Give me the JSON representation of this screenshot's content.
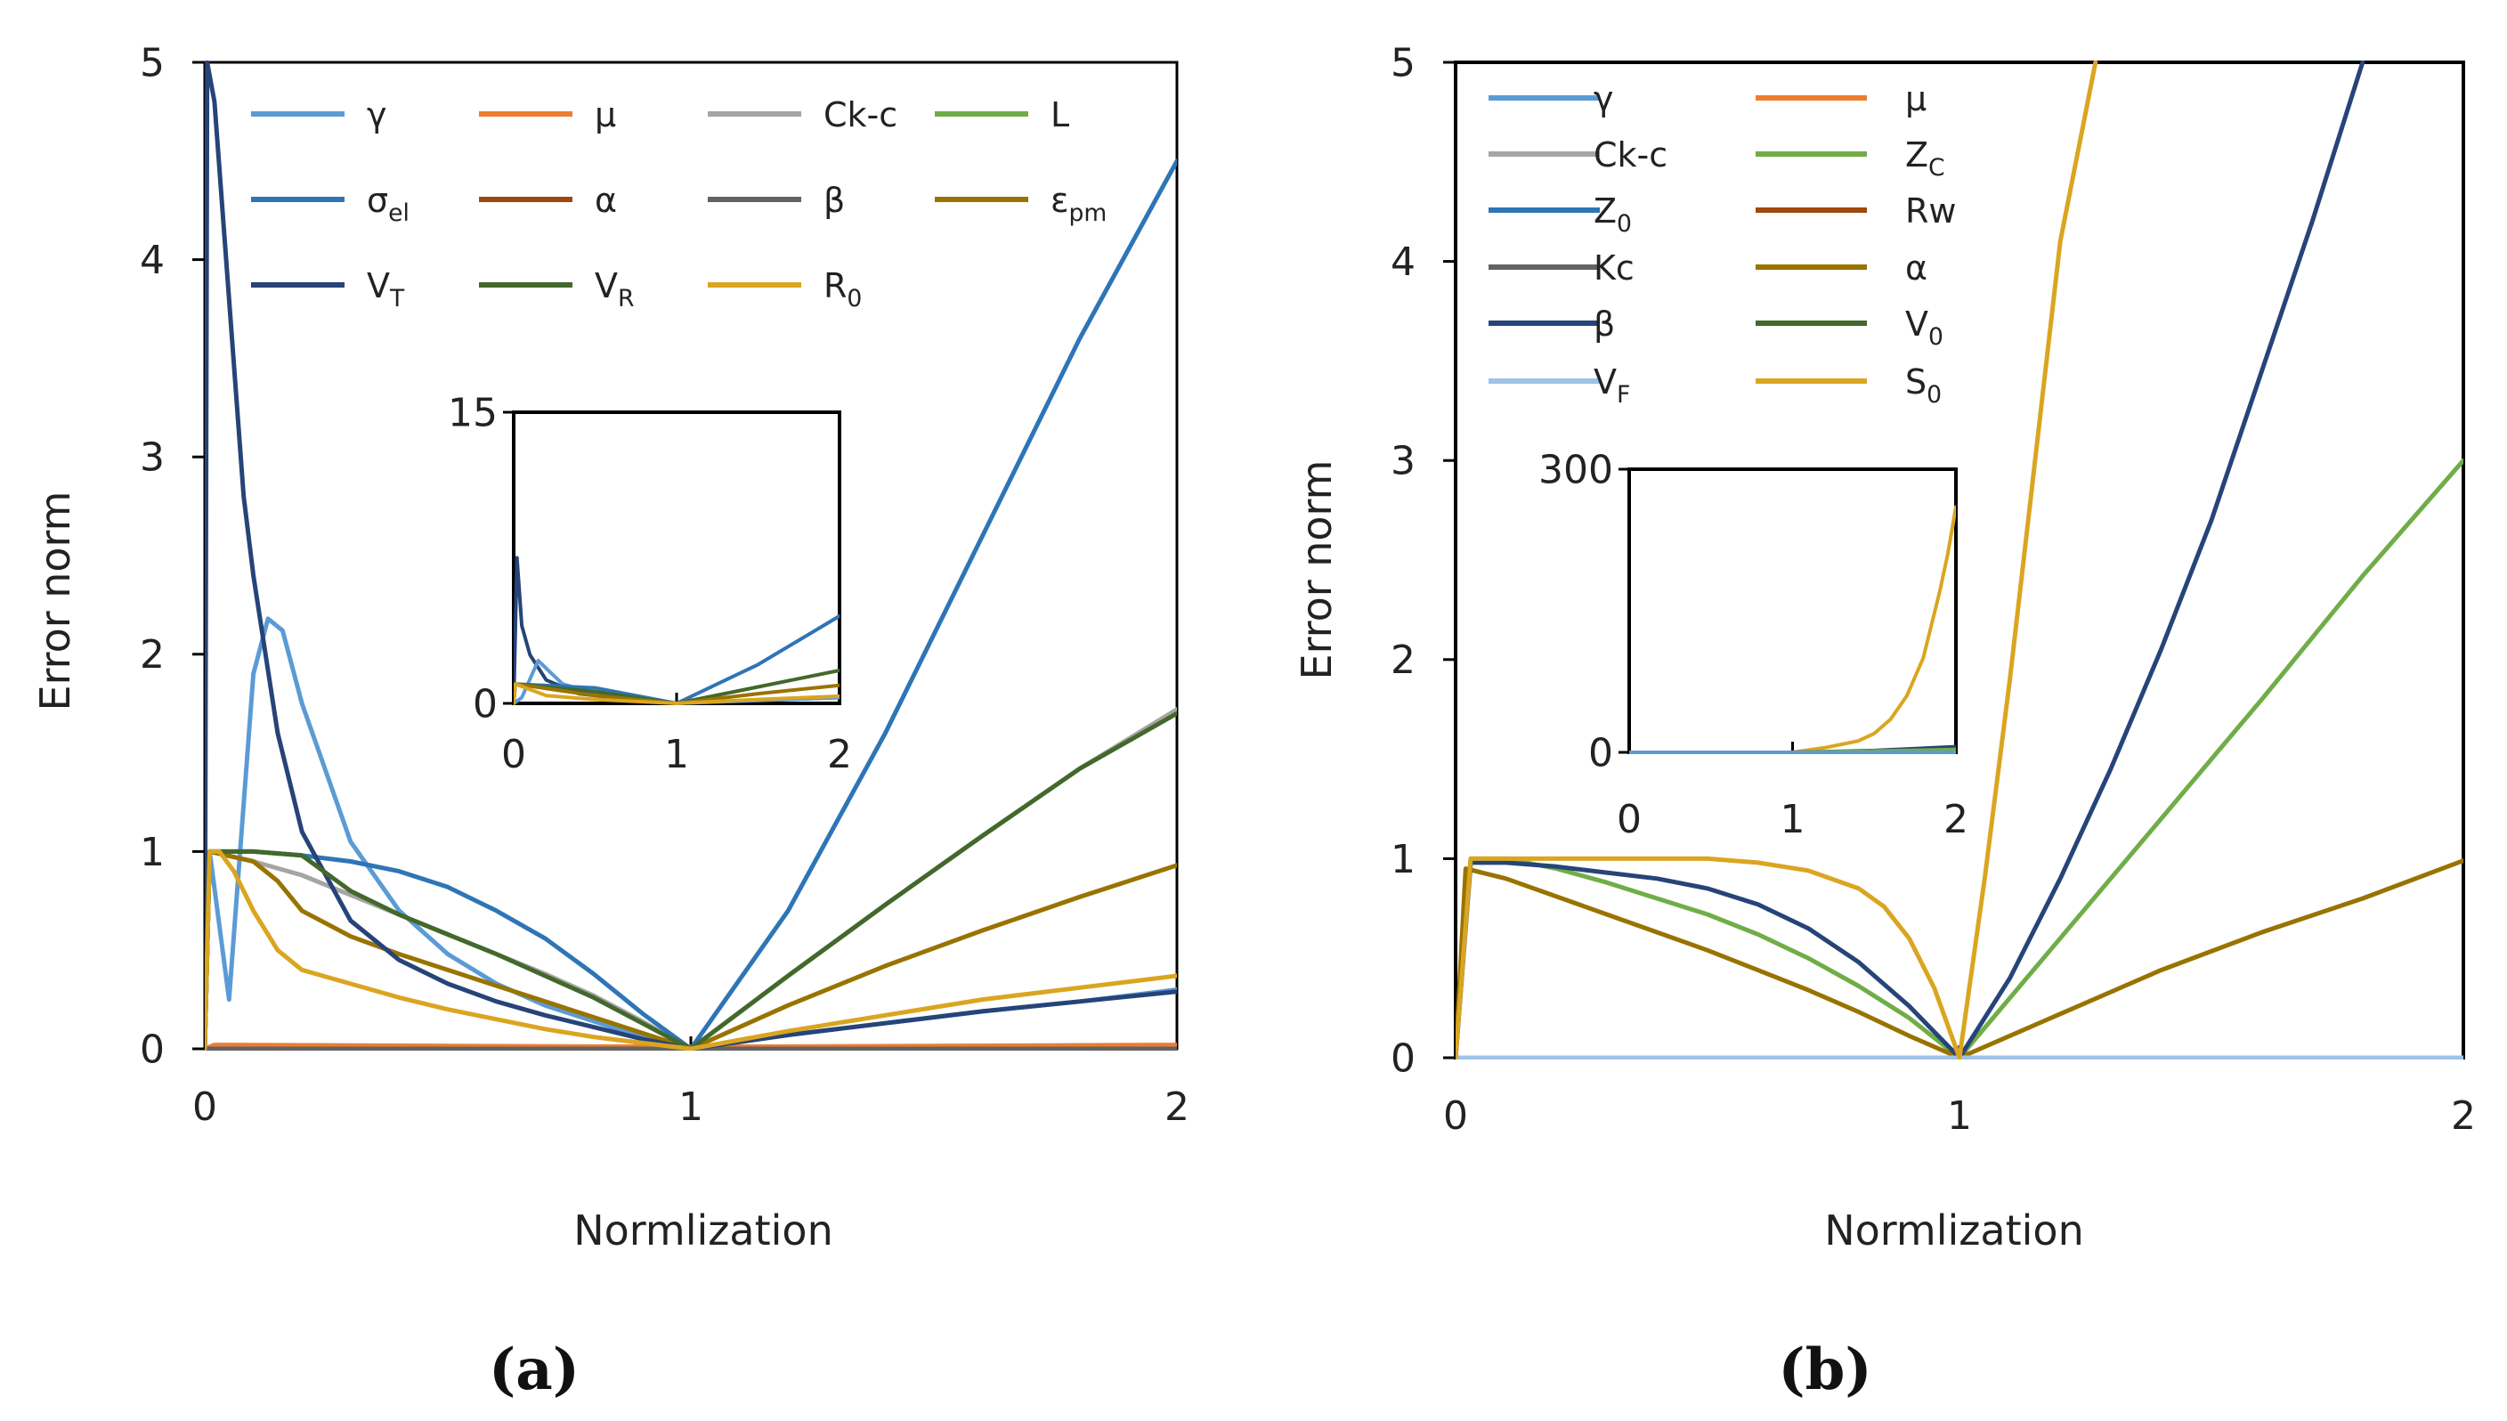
{
  "chart_data": [
    {
      "type": "line",
      "panel_label": "(a)",
      "xlabel": "Normlization",
      "ylabel": "Error norm",
      "xlim": [
        0,
        2
      ],
      "ylim": [
        0,
        5
      ],
      "xticks": [
        "0",
        "1",
        "2"
      ],
      "yticks": [
        "0",
        "1",
        "2",
        "3",
        "4",
        "5"
      ],
      "legend_position": "top",
      "series": [
        {
          "name": "γ",
          "color": "#5b9bd5",
          "x": [
            0,
            0.01,
            0.05,
            0.1,
            0.13,
            0.16,
            0.2,
            0.3,
            0.4,
            0.5,
            0.6,
            0.7,
            0.8,
            0.9,
            1.0,
            1.2,
            1.4,
            1.6,
            1.8,
            2.0
          ],
          "y": [
            0,
            1.0,
            0.25,
            1.9,
            2.18,
            2.12,
            1.75,
            1.05,
            0.7,
            0.48,
            0.33,
            0.22,
            0.14,
            0.06,
            0.0,
            0.07,
            0.13,
            0.19,
            0.24,
            0.3
          ]
        },
        {
          "name": "μ",
          "color": "#ed7d31",
          "x": [
            0,
            0.02,
            1.0,
            2.0
          ],
          "y": [
            0,
            0.02,
            0.01,
            0.02
          ]
        },
        {
          "name": "Ck-c",
          "color": "#a5a5a5",
          "x": [
            0,
            0.01,
            0.1,
            0.2,
            0.3,
            0.4,
            0.5,
            0.6,
            0.7,
            0.8,
            0.9,
            1.0,
            1.2,
            1.4,
            1.6,
            1.8,
            2.0
          ],
          "y": [
            0,
            1.0,
            0.95,
            0.88,
            0.78,
            0.68,
            0.58,
            0.48,
            0.38,
            0.27,
            0.14,
            0.0,
            0.37,
            0.73,
            1.08,
            1.42,
            1.72
          ]
        },
        {
          "name": "L",
          "color": "#70ad47",
          "x": [
            0,
            2.0
          ],
          "y": [
            0,
            0
          ]
        },
        {
          "name": "σ_el",
          "color": "#2e75b6",
          "x": [
            0,
            0.01,
            0.1,
            0.2,
            0.3,
            0.4,
            0.5,
            0.6,
            0.7,
            0.8,
            0.9,
            1.0,
            1.2,
            1.4,
            1.6,
            1.8,
            1.9,
            2.0
          ],
          "y": [
            0,
            1.0,
            1.0,
            0.98,
            0.95,
            0.9,
            0.82,
            0.7,
            0.56,
            0.38,
            0.18,
            0.0,
            0.7,
            1.6,
            2.6,
            3.6,
            4.05,
            4.5
          ]
        },
        {
          "name": "α",
          "color": "#9e480e",
          "x": [
            0,
            2.0
          ],
          "y": [
            0,
            0
          ]
        },
        {
          "name": "β",
          "color": "#636363",
          "x": [
            0,
            2.0
          ],
          "y": [
            0,
            0
          ]
        },
        {
          "name": "ε_pm",
          "color": "#997300",
          "x": [
            0,
            0.01,
            0.1,
            0.15,
            0.2,
            0.3,
            0.4,
            0.5,
            0.6,
            0.7,
            0.8,
            0.9,
            1.0,
            1.2,
            1.4,
            1.6,
            1.8,
            2.0
          ],
          "y": [
            0,
            1.0,
            0.95,
            0.85,
            0.7,
            0.57,
            0.48,
            0.4,
            0.32,
            0.24,
            0.16,
            0.08,
            0.0,
            0.22,
            0.42,
            0.6,
            0.77,
            0.93
          ]
        },
        {
          "name": "V_T",
          "color": "#264478",
          "x": [
            0,
            0.005,
            0.02,
            0.05,
            0.08,
            0.1,
            0.15,
            0.2,
            0.3,
            0.4,
            0.5,
            0.6,
            0.7,
            0.8,
            0.9,
            1.0,
            1.2,
            1.4,
            1.6,
            1.8,
            2.0
          ],
          "y": [
            0,
            5.0,
            4.8,
            3.8,
            2.8,
            2.4,
            1.6,
            1.1,
            0.65,
            0.45,
            0.33,
            0.24,
            0.17,
            0.11,
            0.05,
            0.0,
            0.07,
            0.13,
            0.19,
            0.24,
            0.29
          ]
        },
        {
          "name": "V_R",
          "color": "#43682b",
          "x": [
            0,
            0.01,
            0.1,
            0.2,
            0.3,
            0.4,
            0.5,
            0.6,
            0.7,
            0.8,
            0.9,
            1.0,
            1.2,
            1.4,
            1.6,
            1.8,
            2.0
          ],
          "y": [
            0,
            1.0,
            1.0,
            0.98,
            0.8,
            0.68,
            0.58,
            0.48,
            0.37,
            0.26,
            0.13,
            0.0,
            0.37,
            0.73,
            1.08,
            1.42,
            1.7
          ]
        },
        {
          "name": "R_0",
          "color": "#daa520",
          "x": [
            0,
            0.01,
            0.03,
            0.06,
            0.1,
            0.15,
            0.2,
            0.3,
            0.4,
            0.5,
            0.6,
            0.7,
            0.8,
            0.9,
            1.0,
            1.2,
            1.4,
            1.6,
            1.8,
            2.0
          ],
          "y": [
            0,
            1.0,
            1.0,
            0.9,
            0.7,
            0.5,
            0.4,
            0.33,
            0.26,
            0.2,
            0.15,
            0.1,
            0.06,
            0.03,
            0.0,
            0.09,
            0.17,
            0.25,
            0.31,
            0.37
          ]
        }
      ],
      "inset": {
        "xlim": [
          0,
          2
        ],
        "ylim": [
          0,
          15
        ],
        "xticks": [
          "0",
          "1",
          "2"
        ],
        "yticks": [
          "0",
          "15"
        ],
        "series": [
          {
            "name": "V_T",
            "color": "#264478",
            "x": [
              0,
              0.02,
              0.05,
              0.1,
              0.2,
              0.4,
              0.7,
              1.0,
              1.5,
              2.0
            ],
            "y": [
              0,
              7.5,
              4.0,
              2.5,
              1.2,
              0.5,
              0.2,
              0.0,
              0.15,
              0.3
            ]
          },
          {
            "name": "γ",
            "color": "#5b9bd5",
            "x": [
              0,
              0.05,
              0.15,
              0.3,
              0.5,
              1.0,
              2.0
            ],
            "y": [
              0,
              0.3,
              2.2,
              1.0,
              0.5,
              0.0,
              0.3
            ]
          },
          {
            "name": "σ_el",
            "color": "#2e75b6",
            "x": [
              0,
              0.01,
              0.5,
              1.0,
              1.5,
              2.0
            ],
            "y": [
              0,
              1.0,
              0.8,
              0.0,
              2.0,
              4.5
            ]
          },
          {
            "name": "V_R",
            "color": "#43682b",
            "x": [
              0,
              0.01,
              0.5,
              1.0,
              1.5,
              2.0
            ],
            "y": [
              0,
              1.0,
              0.6,
              0.0,
              0.85,
              1.7
            ]
          },
          {
            "name": "ε_pm",
            "color": "#997300",
            "x": [
              0,
              0.01,
              0.5,
              1.0,
              1.5,
              2.0
            ],
            "y": [
              0,
              1.0,
              0.4,
              0.0,
              0.5,
              0.93
            ]
          },
          {
            "name": "R_0",
            "color": "#daa520",
            "x": [
              0,
              0.01,
              0.2,
              0.5,
              1.0,
              1.5,
              2.0
            ],
            "y": [
              0,
              1.0,
              0.4,
              0.2,
              0.0,
              0.2,
              0.37
            ]
          }
        ]
      }
    },
    {
      "type": "line",
      "panel_label": "(b)",
      "xlabel": "Normlization",
      "ylabel": "Error norm",
      "xlim": [
        0,
        2
      ],
      "ylim": [
        0,
        5
      ],
      "xticks": [
        "0",
        "1",
        "2"
      ],
      "yticks": [
        "0",
        "1",
        "2",
        "3",
        "4",
        "5"
      ],
      "legend_position": "top-left",
      "series": [
        {
          "name": "γ",
          "color": "#5b9bd5",
          "x": [
            0,
            2.0
          ],
          "y": [
            0,
            0
          ]
        },
        {
          "name": "μ",
          "color": "#ed7d31",
          "x": [
            0,
            2.0
          ],
          "y": [
            0,
            0
          ]
        },
        {
          "name": "Ck-c",
          "color": "#a5a5a5",
          "x": [
            0,
            2.0
          ],
          "y": [
            0,
            0
          ]
        },
        {
          "name": "Z_C",
          "color": "#70ad47",
          "x": [
            0,
            0.03,
            0.1,
            0.2,
            0.3,
            0.4,
            0.5,
            0.6,
            0.7,
            0.8,
            0.9,
            1.0,
            1.2,
            1.4,
            1.6,
            1.8,
            2.0
          ],
          "y": [
            0,
            1.0,
            1.0,
            0.95,
            0.88,
            0.8,
            0.72,
            0.62,
            0.5,
            0.36,
            0.2,
            0.0,
            0.6,
            1.2,
            1.8,
            2.42,
            3.0
          ]
        },
        {
          "name": "Z_0",
          "color": "#2e75b6",
          "x": [
            0,
            2.0
          ],
          "y": [
            0,
            0
          ]
        },
        {
          "name": "Rw",
          "color": "#9e480e",
          "x": [
            0,
            2.0
          ],
          "y": [
            0,
            0
          ]
        },
        {
          "name": "Kc",
          "color": "#636363",
          "x": [
            0,
            2.0
          ],
          "y": [
            0,
            0
          ]
        },
        {
          "name": "α",
          "color": "#997300",
          "x": [
            0,
            0.02,
            0.1,
            0.2,
            0.3,
            0.4,
            0.5,
            0.6,
            0.7,
            0.8,
            0.9,
            1.0,
            1.2,
            1.4,
            1.6,
            1.8,
            2.0
          ],
          "y": [
            0,
            0.95,
            0.9,
            0.81,
            0.72,
            0.63,
            0.54,
            0.44,
            0.34,
            0.23,
            0.11,
            0.0,
            0.22,
            0.44,
            0.63,
            0.8,
            0.99
          ]
        },
        {
          "name": "β",
          "color": "#264478",
          "x": [
            0,
            0.03,
            0.1,
            0.2,
            0.3,
            0.4,
            0.5,
            0.6,
            0.7,
            0.8,
            0.9,
            1.0,
            1.1,
            1.2,
            1.3,
            1.4,
            1.5,
            1.6,
            1.7,
            1.8
          ],
          "y": [
            0,
            0.98,
            0.98,
            0.96,
            0.93,
            0.9,
            0.85,
            0.77,
            0.65,
            0.48,
            0.26,
            0.0,
            0.4,
            0.9,
            1.45,
            2.05,
            2.7,
            3.45,
            4.2,
            5.0
          ]
        },
        {
          "name": "V_0",
          "color": "#43682b",
          "x": [
            0,
            2.0
          ],
          "y": [
            0,
            0
          ]
        },
        {
          "name": "V_F",
          "color": "#9dc3e6",
          "x": [
            0,
            2.0
          ],
          "y": [
            0,
            0
          ]
        },
        {
          "name": "S_0",
          "color": "#daa520",
          "x": [
            0,
            0.03,
            0.1,
            0.2,
            0.3,
            0.4,
            0.5,
            0.6,
            0.7,
            0.8,
            0.85,
            0.9,
            0.95,
            1.0,
            1.05,
            1.1,
            1.15,
            1.2,
            1.27
          ],
          "y": [
            0,
            1.0,
            1.0,
            1.0,
            1.0,
            1.0,
            1.0,
            0.98,
            0.94,
            0.85,
            0.76,
            0.6,
            0.35,
            0.0,
            0.9,
            1.9,
            3.0,
            4.1,
            5.0
          ]
        }
      ],
      "inset": {
        "xlim": [
          0,
          2
        ],
        "ylim": [
          0,
          300
        ],
        "xticks": [
          "0",
          "1",
          "2"
        ],
        "yticks": [
          "0",
          "300"
        ],
        "series": [
          {
            "name": "S_0",
            "color": "#daa520",
            "x": [
              0,
              1.0,
              1.2,
              1.4,
              1.5,
              1.6,
              1.7,
              1.8,
              1.9,
              1.95,
              2.0
            ],
            "y": [
              0,
              0,
              5,
              12,
              20,
              35,
              60,
              100,
              170,
              210,
              260
            ]
          },
          {
            "name": "β",
            "color": "#264478",
            "x": [
              0,
              1.0,
              1.5,
              2.0
            ],
            "y": [
              0,
              0,
              2,
              6
            ]
          },
          {
            "name": "Z_C",
            "color": "#70ad47",
            "x": [
              0,
              1.0,
              2.0
            ],
            "y": [
              0,
              0,
              3
            ]
          },
          {
            "name": "γ",
            "color": "#5b9bd5",
            "x": [
              0,
              2.0
            ],
            "y": [
              0,
              0
            ]
          }
        ]
      }
    }
  ]
}
